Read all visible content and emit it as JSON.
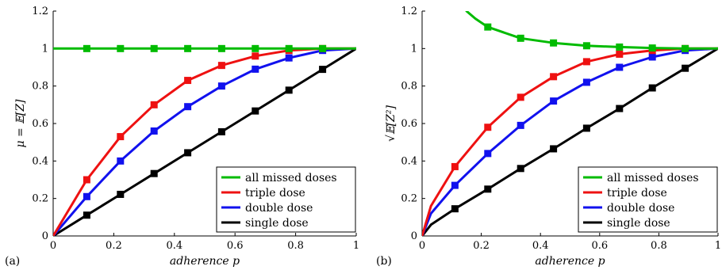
{
  "chart_data": [
    {
      "type": "line",
      "panel_label": "(a)",
      "xlabel": "adherence p",
      "ylabel": "μ = 𝔼[Z]",
      "xlim": [
        0,
        1
      ],
      "ylim": [
        0,
        1.2
      ],
      "xticks": [
        "0",
        "0.2",
        "0.4",
        "0.6",
        "0.8",
        "1"
      ],
      "yticks": [
        "0",
        "0.2",
        "0.4",
        "0.6",
        "0.8",
        "1",
        "1.2"
      ],
      "grid": false,
      "legend_position": "bottom-right",
      "legend": [
        "all missed doses",
        "triple dose",
        "double dose",
        "single dose"
      ],
      "series": [
        {
          "name": "all missed doses",
          "color": "#00bb00",
          "x": [
            0,
            0.111,
            0.222,
            0.333,
            0.444,
            0.556,
            0.667,
            0.778,
            0.889,
            1
          ],
          "y": [
            1,
            1,
            1,
            1,
            1,
            1,
            1,
            1,
            1,
            1
          ]
        },
        {
          "name": "triple dose",
          "color": "#ee1111",
          "x": [
            0,
            0.111,
            0.222,
            0.333,
            0.444,
            0.556,
            0.667,
            0.778,
            0.889,
            1
          ],
          "y": [
            0,
            0.3,
            0.53,
            0.7,
            0.83,
            0.91,
            0.96,
            0.99,
            1.0,
            1.0
          ]
        },
        {
          "name": "double dose",
          "color": "#1111ee",
          "x": [
            0,
            0.111,
            0.222,
            0.333,
            0.444,
            0.556,
            0.667,
            0.778,
            0.889,
            1
          ],
          "y": [
            0,
            0.21,
            0.4,
            0.56,
            0.69,
            0.8,
            0.89,
            0.95,
            0.99,
            1.0
          ]
        },
        {
          "name": "single dose",
          "color": "#000000",
          "x": [
            0,
            0.111,
            0.222,
            0.333,
            0.444,
            0.556,
            0.667,
            0.778,
            0.889,
            1
          ],
          "y": [
            0,
            0.111,
            0.222,
            0.333,
            0.444,
            0.556,
            0.667,
            0.778,
            0.889,
            1.0
          ]
        }
      ]
    },
    {
      "type": "line",
      "panel_label": "(b)",
      "xlabel": "adherence p",
      "ylabel": "√𝔼[Z²]",
      "xlim": [
        0,
        1
      ],
      "ylim": [
        0,
        1.2
      ],
      "xticks": [
        "0",
        "0.2",
        "0.4",
        "0.6",
        "0.8",
        "1"
      ],
      "yticks": [
        "0",
        "0.2",
        "0.4",
        "0.6",
        "0.8",
        "1",
        "1.2"
      ],
      "grid": false,
      "legend_position": "bottom-right",
      "legend": [
        "all missed doses",
        "triple dose",
        "double dose",
        "single dose"
      ],
      "series": [
        {
          "name": "all missed doses",
          "color": "#00bb00",
          "x": [
            0.15,
            0.18,
            0.222,
            0.333,
            0.444,
            0.556,
            0.667,
            0.778,
            0.889,
            1
          ],
          "y": [
            1.2,
            1.16,
            1.115,
            1.055,
            1.03,
            1.015,
            1.008,
            1.003,
            1.0,
            1.0
          ]
        },
        {
          "name": "triple dose",
          "color": "#ee1111",
          "x": [
            0,
            0.03,
            0.111,
            0.222,
            0.333,
            0.444,
            0.556,
            0.667,
            0.778,
            0.889,
            1
          ],
          "y": [
            0,
            0.16,
            0.37,
            0.58,
            0.74,
            0.85,
            0.93,
            0.97,
            0.99,
            1.0,
            1.0
          ]
        },
        {
          "name": "double dose",
          "color": "#1111ee",
          "x": [
            0,
            0.03,
            0.111,
            0.222,
            0.333,
            0.444,
            0.556,
            0.667,
            0.778,
            0.889,
            1
          ],
          "y": [
            0,
            0.12,
            0.27,
            0.44,
            0.59,
            0.72,
            0.82,
            0.9,
            0.955,
            0.99,
            1.0
          ]
        },
        {
          "name": "single dose",
          "color": "#000000",
          "x": [
            0,
            0.03,
            0.111,
            0.222,
            0.333,
            0.444,
            0.556,
            0.667,
            0.778,
            0.889,
            1
          ],
          "y": [
            0,
            0.06,
            0.145,
            0.25,
            0.36,
            0.465,
            0.575,
            0.68,
            0.79,
            0.895,
            1.0
          ]
        }
      ]
    }
  ]
}
